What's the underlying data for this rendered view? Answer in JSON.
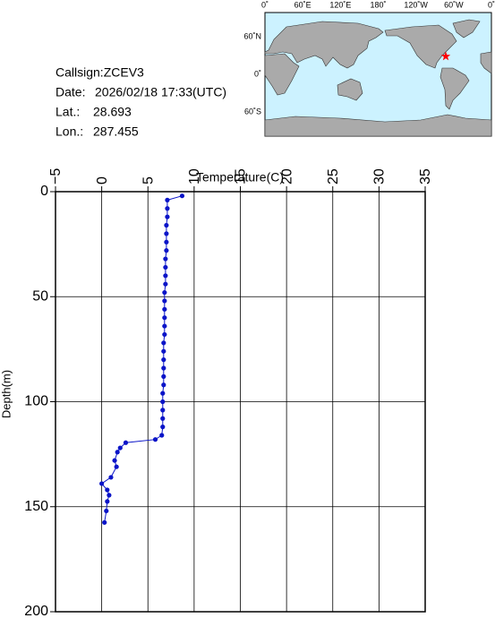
{
  "info": {
    "callsign": "Callsign:ZCEV3",
    "date_label": "Date:",
    "date": "2026/02/18 17:33(UTC)",
    "lat_label": "Lat.:",
    "lat": 28.693,
    "lon_label": "Lon.:",
    "lon": 287.455
  },
  "map": {
    "lon_ticks": [
      {
        "value": 0,
        "label": "0˚"
      },
      {
        "value": 60,
        "label": "60˚E"
      },
      {
        "value": 120,
        "label": "120˚E"
      },
      {
        "value": 180,
        "label": "180˚"
      },
      {
        "value": 240,
        "label": "120˚W"
      },
      {
        "value": 300,
        "label": "60˚W"
      },
      {
        "value": 360,
        "label": "0˚"
      }
    ],
    "lat_ticks": [
      {
        "value": 60,
        "label": "60˚N"
      },
      {
        "value": 0,
        "label": "0˚"
      },
      {
        "value": -60,
        "label": "60˚S"
      }
    ],
    "marker_color": "#ff0000"
  },
  "chart_data": {
    "type": "line",
    "x_label": "Temperature(C)",
    "y_label": "Depth(m)",
    "xlim": [
      -5,
      35
    ],
    "xticks": [
      {
        "value": -5,
        "label": "−5"
      },
      0,
      5,
      10,
      15,
      20,
      25,
      30,
      35
    ],
    "ylim": [
      0,
      200
    ],
    "yticks": [
      0,
      50,
      100,
      150,
      200
    ],
    "y_inverted": true,
    "x_axis_position": "top",
    "grid": true,
    "series": [
      {
        "color": "#0a14c8",
        "x": [
          8.7,
          7.1,
          7.1,
          7.1,
          7.0,
          7.0,
          7.0,
          7.0,
          6.9,
          6.9,
          6.9,
          6.9,
          6.8,
          6.8,
          6.8,
          6.8,
          6.8,
          6.8,
          6.7,
          6.7,
          6.7,
          6.7,
          6.7,
          6.7,
          6.6,
          6.6,
          6.6,
          6.6,
          6.6,
          6.5,
          5.8,
          2.6,
          2.0,
          1.7,
          1.4,
          1.6,
          1.0,
          0.0,
          0.6,
          0.8,
          0.6,
          0.5,
          0.3
        ],
        "y": [
          2,
          4,
          8,
          12,
          16,
          20,
          24,
          28,
          32,
          36,
          40,
          44,
          48,
          52,
          56,
          60,
          64,
          68,
          72,
          76,
          80,
          84,
          88,
          92,
          96,
          100,
          104,
          108,
          112,
          116,
          118,
          119.5,
          122,
          124,
          128,
          131,
          136,
          139,
          142,
          144.5,
          147.5,
          152,
          157.5
        ]
      }
    ]
  }
}
